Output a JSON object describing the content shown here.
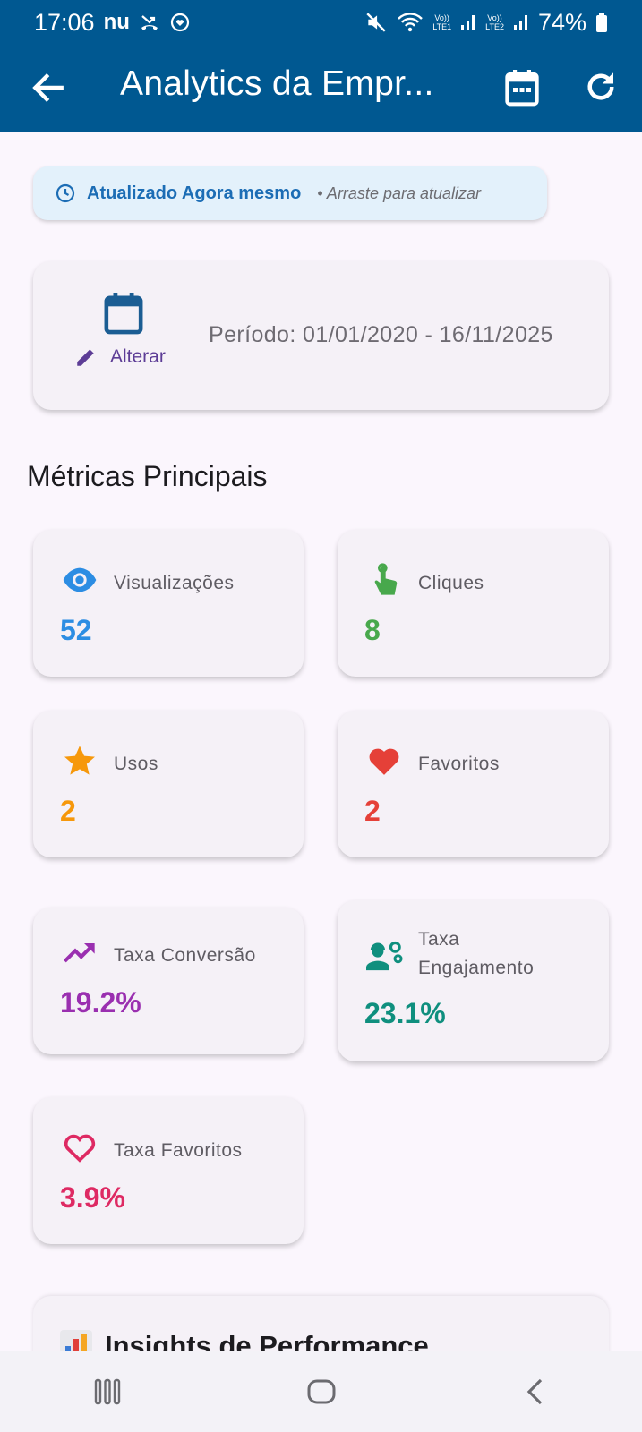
{
  "status_bar": {
    "time": "17:06",
    "carrier_glyph": "nu",
    "battery": "74%",
    "icons": [
      "missed-call-icon",
      "media-icon",
      "mute-icon",
      "wifi-icon",
      "lte1-signal-icon",
      "lte2-signal-icon",
      "battery-icon"
    ],
    "lte1": "LTE1",
    "lte2": "LTE2",
    "volte": "Vo))"
  },
  "app_bar": {
    "title": "Analytics da Empr...",
    "background": "#005891",
    "icons": [
      "back-arrow-icon",
      "calendar-icon",
      "refresh-icon"
    ]
  },
  "updated_banner": {
    "text": "Atualizado Agora mesmo",
    "hint": "• Arraste para atualizar",
    "icon": "clock-icon"
  },
  "period_card": {
    "action_label": "Alterar",
    "period_text": "Período: 01/01/2020 - 16/11/2025",
    "icons": [
      "calendar-icon",
      "pencil-icon"
    ]
  },
  "section_title": "Métricas Principais",
  "metrics": [
    {
      "label": "Visualizações",
      "value": "52",
      "color": "#2c8de3",
      "icon": "eye-icon"
    },
    {
      "label": "Cliques",
      "value": "8",
      "color": "#48a84c",
      "icon": "touch-icon"
    },
    {
      "label": "Usos",
      "value": "2",
      "color": "#f6980b",
      "icon": "star-icon"
    },
    {
      "label": "Favoritos",
      "value": "2",
      "color": "#e54038",
      "icon": "heart-icon"
    },
    {
      "label": "Taxa Conversão",
      "value": "19.2%",
      "color": "#9a2fb0",
      "icon": "trending-up-icon"
    },
    {
      "label": "Taxa\nEngajamento",
      "value": "23.1%",
      "color": "#0f8f7e",
      "icon": "engineering-icon"
    },
    {
      "label": "Taxa Favoritos",
      "value": "3.9%",
      "color": "#de2a63",
      "icon": "heart-outline-icon"
    }
  ],
  "insights": {
    "title": "Insights de Performance",
    "icon": "bar-chart-icon"
  },
  "nav_bar": {
    "icons": [
      "recents-icon",
      "home-icon",
      "back-icon"
    ]
  }
}
